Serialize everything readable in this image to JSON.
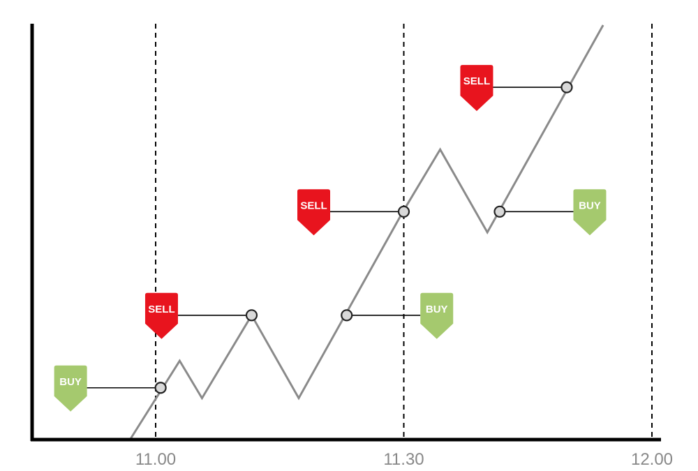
{
  "chart_data": {
    "type": "line",
    "title": "",
    "xlabel": "",
    "ylabel": "",
    "x_unit": "minutes",
    "x_tick_labels": [
      "11.00",
      "11.30",
      "12.00"
    ],
    "x_tick_minutes": [
      0,
      30,
      60
    ],
    "xlim": [
      -15,
      60
    ],
    "ylim": [
      0,
      100
    ],
    "grid": "dashed vertical lines at each x tick",
    "series": [
      {
        "x": [
          -3.1,
          2.9,
          5.6,
          11.6,
          17.3,
          29.9,
          34.4,
          40.1,
          54.1
        ],
        "y": [
          0,
          19,
          10,
          30,
          10,
          55,
          70,
          50,
          100
        ]
      }
    ],
    "signals": [
      {
        "label": "BUY",
        "side": "left",
        "x": 0.6,
        "y": 12.5
      },
      {
        "label": "SELL",
        "side": "left",
        "x": 11.6,
        "y": 30
      },
      {
        "label": "BUY",
        "side": "right",
        "x": 23.1,
        "y": 30
      },
      {
        "label": "SELL",
        "side": "left",
        "x": 30,
        "y": 55
      },
      {
        "label": "BUY",
        "side": "right",
        "x": 41.6,
        "y": 55
      },
      {
        "label": "SELL",
        "side": "left",
        "x": 49.7,
        "y": 85
      }
    ],
    "colors": {
      "line": "#8a8a8a",
      "axis": "#000000",
      "buy": "#a5c96e",
      "sell": "#e8141e",
      "point_fill": "#d9d9d9"
    }
  }
}
